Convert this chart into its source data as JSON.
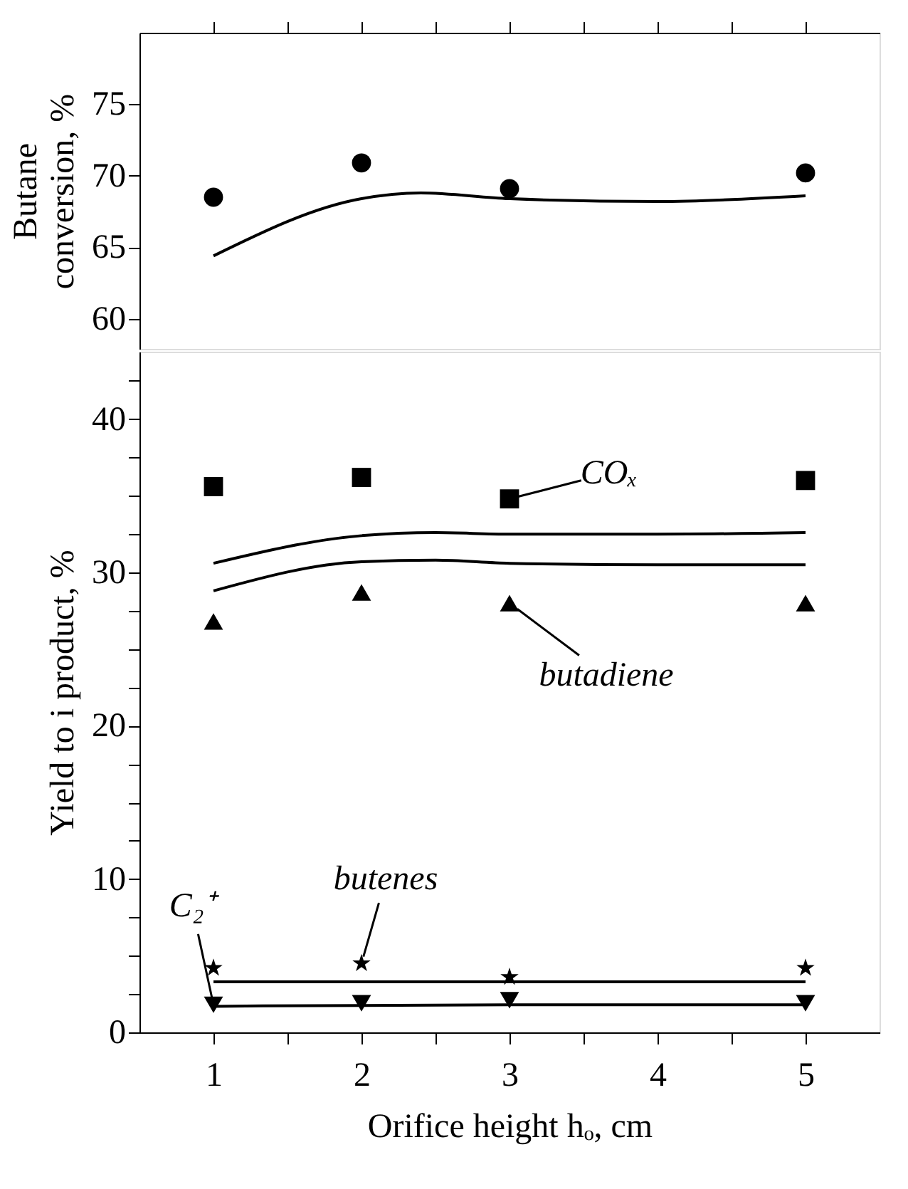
{
  "chart_data": [
    {
      "type": "scatter",
      "ylabel": "Butane\nconversion, %",
      "xlim": [
        0.5,
        5.5
      ],
      "ylim": [
        57.9,
        80
      ],
      "xticks": [
        1,
        {
          "value": 1.5,
          "label": null
        },
        2,
        {
          "value": 2.5,
          "label": null
        },
        3,
        {
          "value": 3.5,
          "label": null
        },
        4,
        {
          "value": 4.5,
          "label": null
        },
        5
      ],
      "yticks": [
        60,
        65,
        70,
        75
      ],
      "tick_labels": "y",
      "grid": false,
      "series": [
        {
          "marker": "circle",
          "color": "#000000",
          "x": [
            1,
            2,
            3,
            5
          ],
          "values": [
            68.5,
            70.9,
            69.1,
            70.2
          ]
        },
        {
          "type": "line",
          "marker": "none",
          "line_style": "solid",
          "color": "#000000",
          "x": [
            1,
            2,
            2.4,
            3,
            4,
            5
          ],
          "values": [
            64.4,
            68.4,
            68.8,
            68.4,
            68.2,
            68.6
          ]
        }
      ]
    },
    {
      "type": "scatter",
      "xlabel": "Orifice height hₒ, cm",
      "ylabel": "Yield to i product, %",
      "xlim": [
        0.5,
        5.5
      ],
      "ylim": [
        0,
        44.4
      ],
      "xticks": [
        1,
        {
          "value": 1.5,
          "label": null
        },
        2,
        {
          "value": 2.5,
          "label": null
        },
        3,
        {
          "value": 3.5,
          "label": null
        },
        4,
        {
          "value": 4.5,
          "label": null
        },
        5
      ],
      "yticks": [
        0,
        {
          "value": 2.5,
          "label": null
        },
        {
          "value": 5,
          "label": null
        },
        {
          "value": 7.5,
          "label": null
        },
        10,
        {
          "value": 12.5,
          "label": null
        },
        {
          "value": 15,
          "label": null
        },
        {
          "value": 17.5,
          "label": null
        },
        20,
        {
          "value": 22.5,
          "label": null
        },
        {
          "value": 25,
          "label": null
        },
        {
          "value": 27.5,
          "label": null
        },
        30,
        {
          "value": 32.5,
          "label": null
        },
        {
          "value": 35,
          "label": null
        },
        {
          "value": 37.5,
          "label": null
        },
        40,
        {
          "value": 42.5,
          "label": null
        }
      ],
      "grid": false,
      "series": [
        {
          "marker": "square",
          "color": "#000000",
          "x": [
            1,
            2,
            3,
            5
          ],
          "values": [
            35.6,
            36.2,
            34.8,
            36.0
          ]
        },
        {
          "marker": "triangle",
          "color": "#000000",
          "x": [
            1,
            2,
            3,
            5
          ],
          "values": [
            26.8,
            28.7,
            28.0,
            28.0
          ]
        },
        {
          "marker": "star",
          "color": "#000000",
          "x": [
            1,
            2,
            3,
            5
          ],
          "values": [
            4.2,
            4.5,
            3.6,
            4.2
          ]
        },
        {
          "marker": "triangle-down",
          "color": "#000000",
          "x": [
            1,
            2,
            3,
            5
          ],
          "values": [
            1.8,
            1.9,
            2.1,
            1.9
          ]
        },
        {
          "type": "line",
          "marker": "none",
          "line_style": "solid",
          "color": "#000000",
          "x": [
            1,
            2,
            2.5,
            3,
            4,
            5
          ],
          "values": [
            30.6,
            32.4,
            32.6,
            32.5,
            32.5,
            32.6
          ]
        },
        {
          "type": "line",
          "marker": "none",
          "line_style": "solid",
          "color": "#000000",
          "x": [
            1,
            2,
            2.5,
            3,
            4,
            5
          ],
          "values": [
            28.8,
            30.7,
            30.8,
            30.6,
            30.5,
            30.5
          ]
        },
        {
          "type": "line",
          "marker": "none",
          "line_style": "solid",
          "color": "#000000",
          "x": [
            1,
            3,
            5
          ],
          "values": [
            3.3,
            3.3,
            3.3
          ]
        },
        {
          "type": "line",
          "marker": "none",
          "line_style": "solid",
          "color": "#000000",
          "x": [
            1,
            3,
            5
          ],
          "values": [
            1.7,
            1.8,
            1.8
          ]
        }
      ],
      "annotations": [
        {
          "text": "COₓ",
          "x": 3,
          "y": 34.8
        },
        {
          "text": "butadiene",
          "x": 3,
          "y": 28.0
        },
        {
          "text": "butenes",
          "x": 2,
          "y": 4.5
        },
        {
          "text": "C₂⁺",
          "x": 1,
          "y": 1.8
        }
      ]
    }
  ]
}
